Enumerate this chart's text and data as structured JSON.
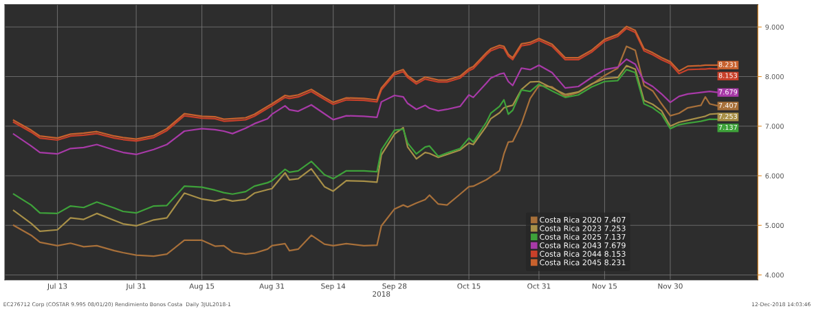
{
  "chart_data": {
    "type": "line",
    "x": [
      "2018-07-03",
      "2018-07-07",
      "2018-07-09",
      "2018-07-13",
      "2018-07-16",
      "2018-07-19",
      "2018-07-22",
      "2018-07-26",
      "2018-07-28",
      "2018-07-31",
      "2018-08-04",
      "2018-08-07",
      "2018-08-11",
      "2018-08-15",
      "2018-08-18",
      "2018-08-20",
      "2018-08-22",
      "2018-08-25",
      "2018-08-27",
      "2018-08-30",
      "2018-08-31",
      "2018-09-03",
      "2018-09-04",
      "2018-09-06",
      "2018-09-09",
      "2018-09-12",
      "2018-09-14",
      "2018-09-17",
      "2018-09-21",
      "2018-09-24",
      "2018-09-25",
      "2018-09-28",
      "2018-09-30",
      "2018-10-01",
      "2018-10-03",
      "2018-10-05",
      "2018-10-06",
      "2018-10-08",
      "2018-10-10",
      "2018-10-13",
      "2018-10-15",
      "2018-10-16",
      "2018-10-19",
      "2018-10-20",
      "2018-10-22",
      "2018-10-23",
      "2018-10-24",
      "2018-10-25",
      "2018-10-27",
      "2018-10-29",
      "2018-10-31",
      "2018-11-03",
      "2018-11-06",
      "2018-11-09",
      "2018-11-12",
      "2018-11-15",
      "2018-11-18",
      "2018-11-20",
      "2018-11-22",
      "2018-11-24",
      "2018-11-26",
      "2018-11-28",
      "2018-11-30",
      "2018-12-02",
      "2018-12-04",
      "2018-12-07",
      "2018-12-08",
      "2018-12-09",
      "2018-12-11"
    ],
    "series": [
      {
        "name": "Costa Rica 2020 7.407",
        "color": "#a8703a",
        "value_labels": [
          null,
          null,
          null,
          null,
          null,
          null,
          null,
          null,
          null,
          null,
          null,
          null,
          null,
          null,
          null,
          null,
          null,
          null,
          null,
          null,
          null,
          null,
          null,
          null,
          null,
          null,
          null,
          null,
          null,
          null,
          null,
          null,
          null,
          null,
          null,
          null,
          null,
          null,
          null,
          null,
          null,
          null,
          null,
          null,
          null,
          null,
          null,
          null,
          null,
          null,
          null,
          null,
          null,
          null,
          null,
          null,
          null,
          null,
          null,
          null,
          null,
          null,
          null,
          null,
          null,
          null,
          null,
          null,
          "7.407"
        ],
        "values": [
          5.0,
          4.8,
          4.66,
          4.59,
          4.64,
          4.57,
          4.59,
          4.49,
          4.45,
          4.4,
          4.38,
          4.42,
          4.7,
          4.7,
          4.58,
          4.59,
          4.46,
          4.42,
          4.44,
          4.52,
          4.59,
          4.63,
          4.49,
          4.52,
          4.8,
          4.62,
          4.59,
          4.63,
          4.59,
          4.6,
          4.99,
          5.33,
          5.41,
          5.37,
          5.45,
          5.52,
          5.61,
          5.43,
          5.41,
          5.63,
          5.78,
          5.79,
          5.92,
          5.98,
          6.1,
          6.44,
          6.68,
          6.69,
          7.05,
          7.56,
          7.82,
          7.79,
          7.6,
          7.68,
          7.84,
          8.02,
          8.17,
          8.61,
          8.53,
          7.82,
          7.71,
          7.45,
          7.21,
          7.26,
          7.37,
          7.42,
          7.59,
          7.45,
          7.407
        ]
      },
      {
        "name": "Costa Rica 2023 7.253",
        "color": "#a89048",
        "value_labels": [
          null,
          null,
          null,
          null,
          null,
          null,
          null,
          null,
          null,
          null,
          null,
          null,
          null,
          null,
          null,
          null,
          null,
          null,
          null,
          null,
          null,
          null,
          null,
          null,
          null,
          null,
          null,
          null,
          null,
          null,
          null,
          null,
          null,
          null,
          null,
          null,
          null,
          null,
          null,
          null,
          null,
          null,
          null,
          null,
          null,
          null,
          null,
          null,
          null,
          null,
          null,
          null,
          null,
          null,
          null,
          null,
          null,
          null,
          null,
          null,
          null,
          null,
          null,
          null,
          null,
          null,
          null,
          null,
          "7.253"
        ],
        "values": [
          5.3,
          5.04,
          4.88,
          4.91,
          5.15,
          5.12,
          5.24,
          5.1,
          5.03,
          4.99,
          5.11,
          5.15,
          5.65,
          5.53,
          5.49,
          5.53,
          5.49,
          5.52,
          5.65,
          5.72,
          5.74,
          6.06,
          5.92,
          5.94,
          6.14,
          5.78,
          5.69,
          5.9,
          5.89,
          5.87,
          6.42,
          6.84,
          6.97,
          6.58,
          6.34,
          6.47,
          6.45,
          6.37,
          6.43,
          6.52,
          6.66,
          6.63,
          7.0,
          7.15,
          7.27,
          7.37,
          7.4,
          7.42,
          7.74,
          7.89,
          7.9,
          7.77,
          7.64,
          7.69,
          7.85,
          7.96,
          7.98,
          8.22,
          8.15,
          7.52,
          7.44,
          7.31,
          7.0,
          7.08,
          7.12,
          7.18,
          7.2,
          7.24,
          7.253
        ]
      },
      {
        "name": "Costa Rica 2025 7.137",
        "color": "#3ea23a",
        "value_labels": [
          null,
          null,
          null,
          null,
          null,
          null,
          null,
          null,
          null,
          null,
          null,
          null,
          null,
          null,
          null,
          null,
          null,
          null,
          null,
          null,
          null,
          null,
          null,
          null,
          null,
          null,
          null,
          null,
          null,
          null,
          null,
          null,
          null,
          null,
          null,
          null,
          null,
          null,
          null,
          null,
          null,
          null,
          null,
          null,
          null,
          null,
          null,
          null,
          null,
          null,
          null,
          null,
          null,
          null,
          null,
          null,
          null,
          null,
          null,
          null,
          null,
          null,
          null,
          null,
          null,
          null,
          null,
          null,
          "7.137"
        ],
        "values": [
          5.63,
          5.41,
          5.25,
          5.24,
          5.39,
          5.36,
          5.47,
          5.35,
          5.28,
          5.25,
          5.39,
          5.4,
          5.79,
          5.77,
          5.71,
          5.66,
          5.63,
          5.68,
          5.79,
          5.86,
          5.9,
          6.13,
          6.07,
          6.1,
          6.29,
          6.02,
          5.94,
          6.1,
          6.1,
          6.08,
          6.52,
          6.92,
          6.94,
          6.66,
          6.44,
          6.58,
          6.6,
          6.39,
          6.46,
          6.55,
          6.76,
          6.68,
          7.08,
          7.26,
          7.4,
          7.53,
          7.24,
          7.32,
          7.73,
          7.7,
          7.85,
          7.71,
          7.58,
          7.63,
          7.79,
          7.9,
          7.92,
          8.14,
          8.08,
          7.45,
          7.37,
          7.24,
          6.95,
          7.03,
          7.06,
          7.1,
          7.12,
          7.14,
          7.137
        ]
      },
      {
        "name": "Costa Rica 2043 7.679",
        "color": "#a83aa8",
        "value_labels": [
          null,
          null,
          null,
          null,
          null,
          null,
          null,
          null,
          null,
          null,
          null,
          null,
          null,
          null,
          null,
          null,
          null,
          null,
          null,
          null,
          null,
          null,
          null,
          null,
          null,
          null,
          null,
          null,
          null,
          null,
          null,
          null,
          null,
          null,
          null,
          null,
          null,
          null,
          null,
          null,
          null,
          null,
          null,
          null,
          null,
          null,
          null,
          null,
          null,
          null,
          null,
          null,
          null,
          null,
          null,
          null,
          null,
          null,
          null,
          null,
          null,
          null,
          null,
          null,
          null,
          null,
          null,
          null,
          "7.679"
        ],
        "values": [
          6.84,
          6.6,
          6.47,
          6.44,
          6.55,
          6.57,
          6.63,
          6.52,
          6.47,
          6.43,
          6.53,
          6.63,
          6.9,
          6.95,
          6.93,
          6.9,
          6.85,
          6.96,
          7.05,
          7.15,
          7.24,
          7.41,
          7.33,
          7.3,
          7.43,
          7.25,
          7.13,
          7.21,
          7.2,
          7.18,
          7.49,
          7.62,
          7.59,
          7.46,
          7.34,
          7.42,
          7.36,
          7.31,
          7.34,
          7.4,
          7.63,
          7.58,
          7.87,
          7.97,
          8.05,
          8.07,
          7.9,
          7.82,
          8.17,
          8.14,
          8.23,
          8.08,
          7.77,
          7.8,
          7.98,
          8.14,
          8.19,
          8.35,
          8.25,
          7.9,
          7.8,
          7.65,
          7.48,
          7.6,
          7.65,
          7.68,
          7.69,
          7.7,
          7.679
        ]
      },
      {
        "name": "Costa Rica 2044 8.153",
        "color": "#c8402a",
        "value_labels": [
          null,
          null,
          null,
          null,
          null,
          null,
          null,
          null,
          null,
          null,
          null,
          null,
          null,
          null,
          null,
          null,
          null,
          null,
          null,
          null,
          null,
          null,
          null,
          null,
          null,
          null,
          null,
          null,
          null,
          null,
          null,
          null,
          null,
          null,
          null,
          null,
          null,
          null,
          null,
          null,
          null,
          null,
          null,
          null,
          null,
          null,
          null,
          null,
          null,
          null,
          null,
          null,
          null,
          null,
          null,
          null,
          null,
          null,
          null,
          null,
          null,
          null,
          null,
          null,
          null,
          null,
          null,
          null,
          "8.153"
        ],
        "values": [
          7.08,
          6.88,
          6.76,
          6.72,
          6.8,
          6.82,
          6.85,
          6.76,
          6.73,
          6.7,
          6.77,
          6.91,
          7.21,
          7.16,
          7.15,
          7.1,
          7.11,
          7.13,
          7.2,
          7.36,
          7.41,
          7.58,
          7.56,
          7.59,
          7.7,
          7.54,
          7.44,
          7.53,
          7.52,
          7.49,
          7.73,
          8.04,
          8.1,
          7.98,
          7.85,
          7.95,
          7.93,
          7.89,
          7.89,
          7.97,
          8.12,
          8.16,
          8.44,
          8.52,
          8.59,
          8.57,
          8.41,
          8.34,
          8.62,
          8.65,
          8.73,
          8.61,
          8.34,
          8.34,
          8.49,
          8.71,
          8.81,
          8.97,
          8.89,
          8.52,
          8.44,
          8.34,
          8.26,
          8.06,
          8.14,
          8.15,
          8.15,
          8.16,
          8.153
        ]
      },
      {
        "name": "Costa Rica 2045 8.231",
        "color": "#c8622e",
        "value_labels": [
          null,
          null,
          null,
          null,
          null,
          null,
          null,
          null,
          null,
          null,
          null,
          null,
          null,
          null,
          null,
          null,
          null,
          null,
          null,
          null,
          null,
          null,
          null,
          null,
          null,
          null,
          null,
          null,
          null,
          null,
          null,
          null,
          null,
          null,
          null,
          null,
          null,
          null,
          null,
          null,
          null,
          null,
          null,
          null,
          null,
          null,
          null,
          null,
          null,
          null,
          null,
          null,
          null,
          null,
          null,
          null,
          null,
          null,
          null,
          null,
          null,
          null,
          null,
          null,
          null,
          null,
          null,
          null,
          "8.231"
        ],
        "values": [
          7.12,
          6.92,
          6.8,
          6.76,
          6.84,
          6.86,
          6.89,
          6.8,
          6.77,
          6.74,
          6.81,
          6.95,
          7.25,
          7.2,
          7.19,
          7.14,
          7.15,
          7.17,
          7.24,
          7.4,
          7.45,
          7.62,
          7.6,
          7.63,
          7.74,
          7.58,
          7.48,
          7.57,
          7.56,
          7.53,
          7.77,
          8.08,
          8.14,
          8.02,
          7.89,
          7.99,
          7.97,
          7.93,
          7.93,
          8.01,
          8.16,
          8.2,
          8.48,
          8.56,
          8.63,
          8.61,
          8.45,
          8.38,
          8.66,
          8.69,
          8.77,
          8.65,
          8.38,
          8.38,
          8.53,
          8.75,
          8.85,
          9.01,
          8.93,
          8.56,
          8.48,
          8.38,
          8.3,
          8.11,
          8.21,
          8.22,
          8.23,
          8.23,
          8.231
        ]
      }
    ],
    "xlabel": "2018",
    "xlim": [
      "2018-07-01",
      "2018-12-20"
    ],
    "xticks": [
      {
        "value": "2018-07-13",
        "label": "Jul 13"
      },
      {
        "value": "2018-07-31",
        "label": "Jul 31"
      },
      {
        "value": "2018-08-15",
        "label": "Aug 15"
      },
      {
        "value": "2018-08-31",
        "label": "Aug 31"
      },
      {
        "value": "2018-09-14",
        "label": "Sep 14"
      },
      {
        "value": "2018-09-28",
        "label": "Sep 28"
      },
      {
        "value": "2018-10-15",
        "label": "Oct 15"
      },
      {
        "value": "2018-10-31",
        "label": "Oct 31"
      },
      {
        "value": "2018-11-15",
        "label": "Nov 15"
      },
      {
        "value": "2018-11-30",
        "label": "Nov 30"
      }
    ],
    "ylim": [
      3.9,
      9.45
    ],
    "yticks": [
      {
        "value": 4,
        "label": "4.000"
      },
      {
        "value": 5,
        "label": "5.000"
      },
      {
        "value": 6,
        "label": "6.000"
      },
      {
        "value": 7,
        "label": "7.000"
      },
      {
        "value": 8,
        "label": "8.000"
      },
      {
        "value": 9,
        "label": "9.000"
      }
    ],
    "grid": true,
    "legend": "bottom right",
    "annotations": [
      "EC276712 Corp (COSTAR 9.995 08/01/20) Rendimiento Bonos Costa  Daily 3JUL2018-1",
      "12-Dec-2018 14:03:46"
    ]
  }
}
